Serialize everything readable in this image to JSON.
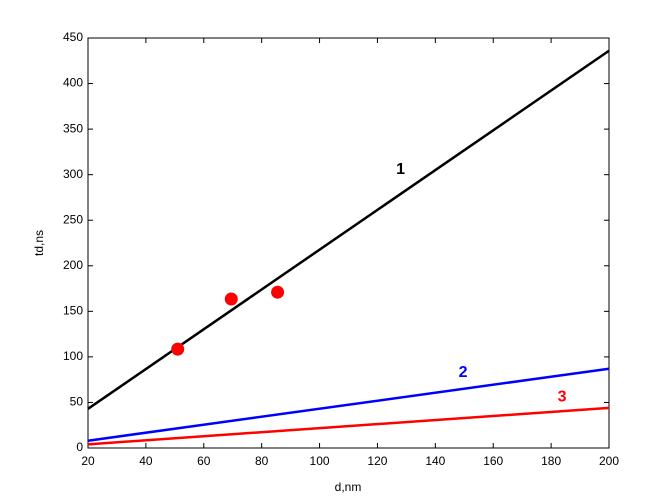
{
  "chart_data": {
    "type": "line",
    "xlabel": "d,nm",
    "ylabel": "td,ns",
    "series": [
      {
        "name": "1",
        "color": "#000000",
        "x": [
          20,
          200
        ],
        "values": [
          43,
          436
        ]
      },
      {
        "name": "2",
        "color": "#0000ff",
        "x": [
          20,
          200
        ],
        "values": [
          8,
          87
        ]
      },
      {
        "name": "3",
        "color": "#ff0000",
        "x": [
          20,
          200
        ],
        "values": [
          4,
          44
        ]
      }
    ],
    "points": {
      "color": "#ff0000",
      "x": [
        51,
        69.5,
        85.5
      ],
      "values": [
        108.5,
        163.5,
        171
      ]
    },
    "xlim": [
      20,
      200
    ],
    "xticks": [
      20,
      40,
      60,
      80,
      100,
      120,
      140,
      160,
      180,
      200
    ],
    "ylim": [
      0,
      450
    ],
    "yticks": [
      0,
      50,
      100,
      150,
      200,
      250,
      300,
      350,
      400,
      450
    ],
    "grid": false
  }
}
